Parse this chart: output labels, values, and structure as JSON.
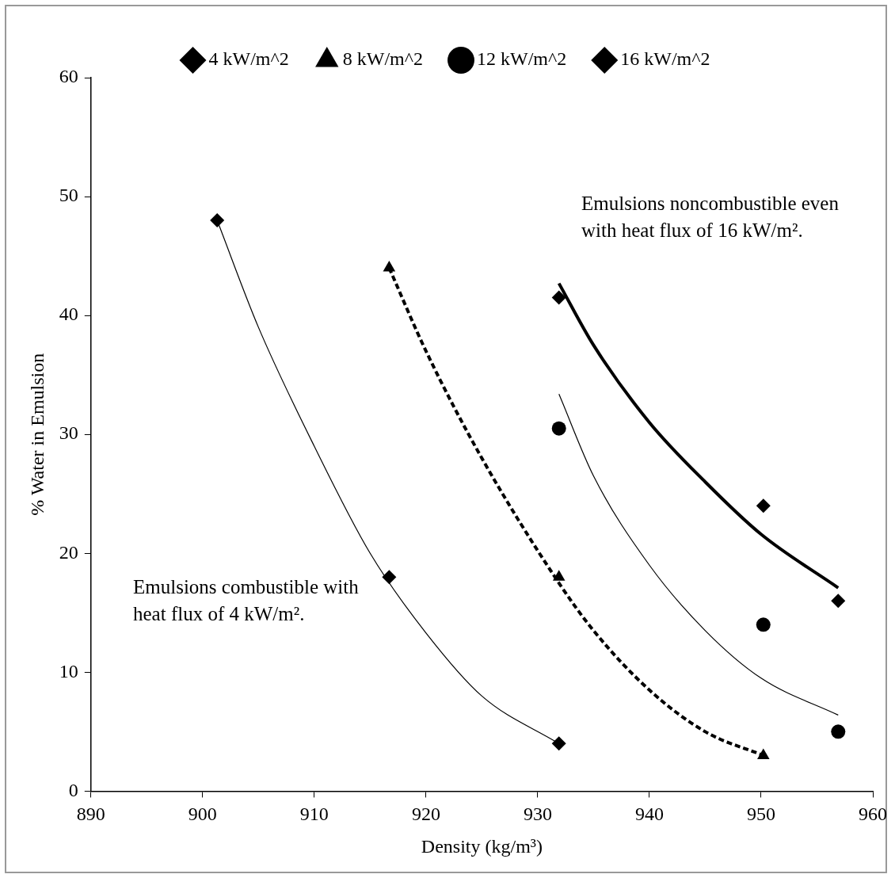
{
  "chart_data": {
    "type": "scatter",
    "xlabel": "Density (kg/m³)",
    "ylabel": "% Water in Emulsion",
    "xlim": [
      890,
      960
    ],
    "xticks": [
      890,
      900,
      910,
      920,
      930,
      940,
      950,
      960
    ],
    "ylim": [
      0,
      60
    ],
    "yticks": [
      0,
      10,
      20,
      30,
      40,
      50,
      60
    ],
    "grid": false,
    "legend": "top",
    "series": [
      {
        "name": "4 kW/m^2",
        "type": "scatter",
        "marker": "diamond",
        "color": "#000000",
        "x": [
          901.3,
          916.7,
          931.9
        ],
        "values": [
          48,
          18,
          4
        ]
      },
      {
        "name": "8 kW/m^2",
        "type": "scatter",
        "marker": "triangle",
        "color": "#000000",
        "x": [
          916.7,
          931.9,
          950.2
        ],
        "values": [
          44,
          18,
          3
        ]
      },
      {
        "name": "12 kW/m^2",
        "type": "scatter",
        "marker": "circle",
        "color": "#000000",
        "x": [
          931.9,
          950.2,
          956.9
        ],
        "values": [
          30.5,
          14,
          5
        ]
      },
      {
        "name": "16 kW/m^2",
        "type": "scatter",
        "marker": "diamond",
        "color": "#000000",
        "x": [
          931.9,
          950.2,
          956.9
        ],
        "values": [
          41.5,
          24,
          16
        ]
      },
      {
        "type": "line",
        "marker": "none",
        "line_style": "solid",
        "color": "#000000",
        "x": [
          901.3,
          905,
          910,
          915,
          920,
          925,
          931.9
        ],
        "values": [
          48,
          39,
          29,
          20,
          13.3,
          8,
          4
        ]
      },
      {
        "type": "line",
        "marker": "none",
        "line_style": "dashed",
        "color": "#000000",
        "x": [
          916.7,
          920,
          925,
          931.9,
          935,
          940,
          945,
          950.2
        ],
        "values": [
          44,
          37,
          28,
          17.5,
          13.5,
          8.5,
          5,
          3
        ]
      },
      {
        "type": "line",
        "marker": "none",
        "line_style": "solid",
        "color": "#000000",
        "x": [
          931.9,
          935,
          940,
          945,
          950,
          956.9
        ],
        "values": [
          33.4,
          26.5,
          19,
          13.5,
          9.5,
          6.4
        ]
      },
      {
        "type": "line",
        "marker": "none",
        "line_style": "solid",
        "color": "#000000",
        "x": [
          931.9,
          935,
          940,
          945,
          950,
          956.9
        ],
        "values": [
          42.7,
          37.5,
          31,
          26,
          21.6,
          17.1
        ]
      }
    ],
    "annotations": [
      "Emulsions noncombustible even with heat flux of  16 kW/m².",
      "Emulsions combustible with heat flux of  4 kW/m²."
    ]
  }
}
